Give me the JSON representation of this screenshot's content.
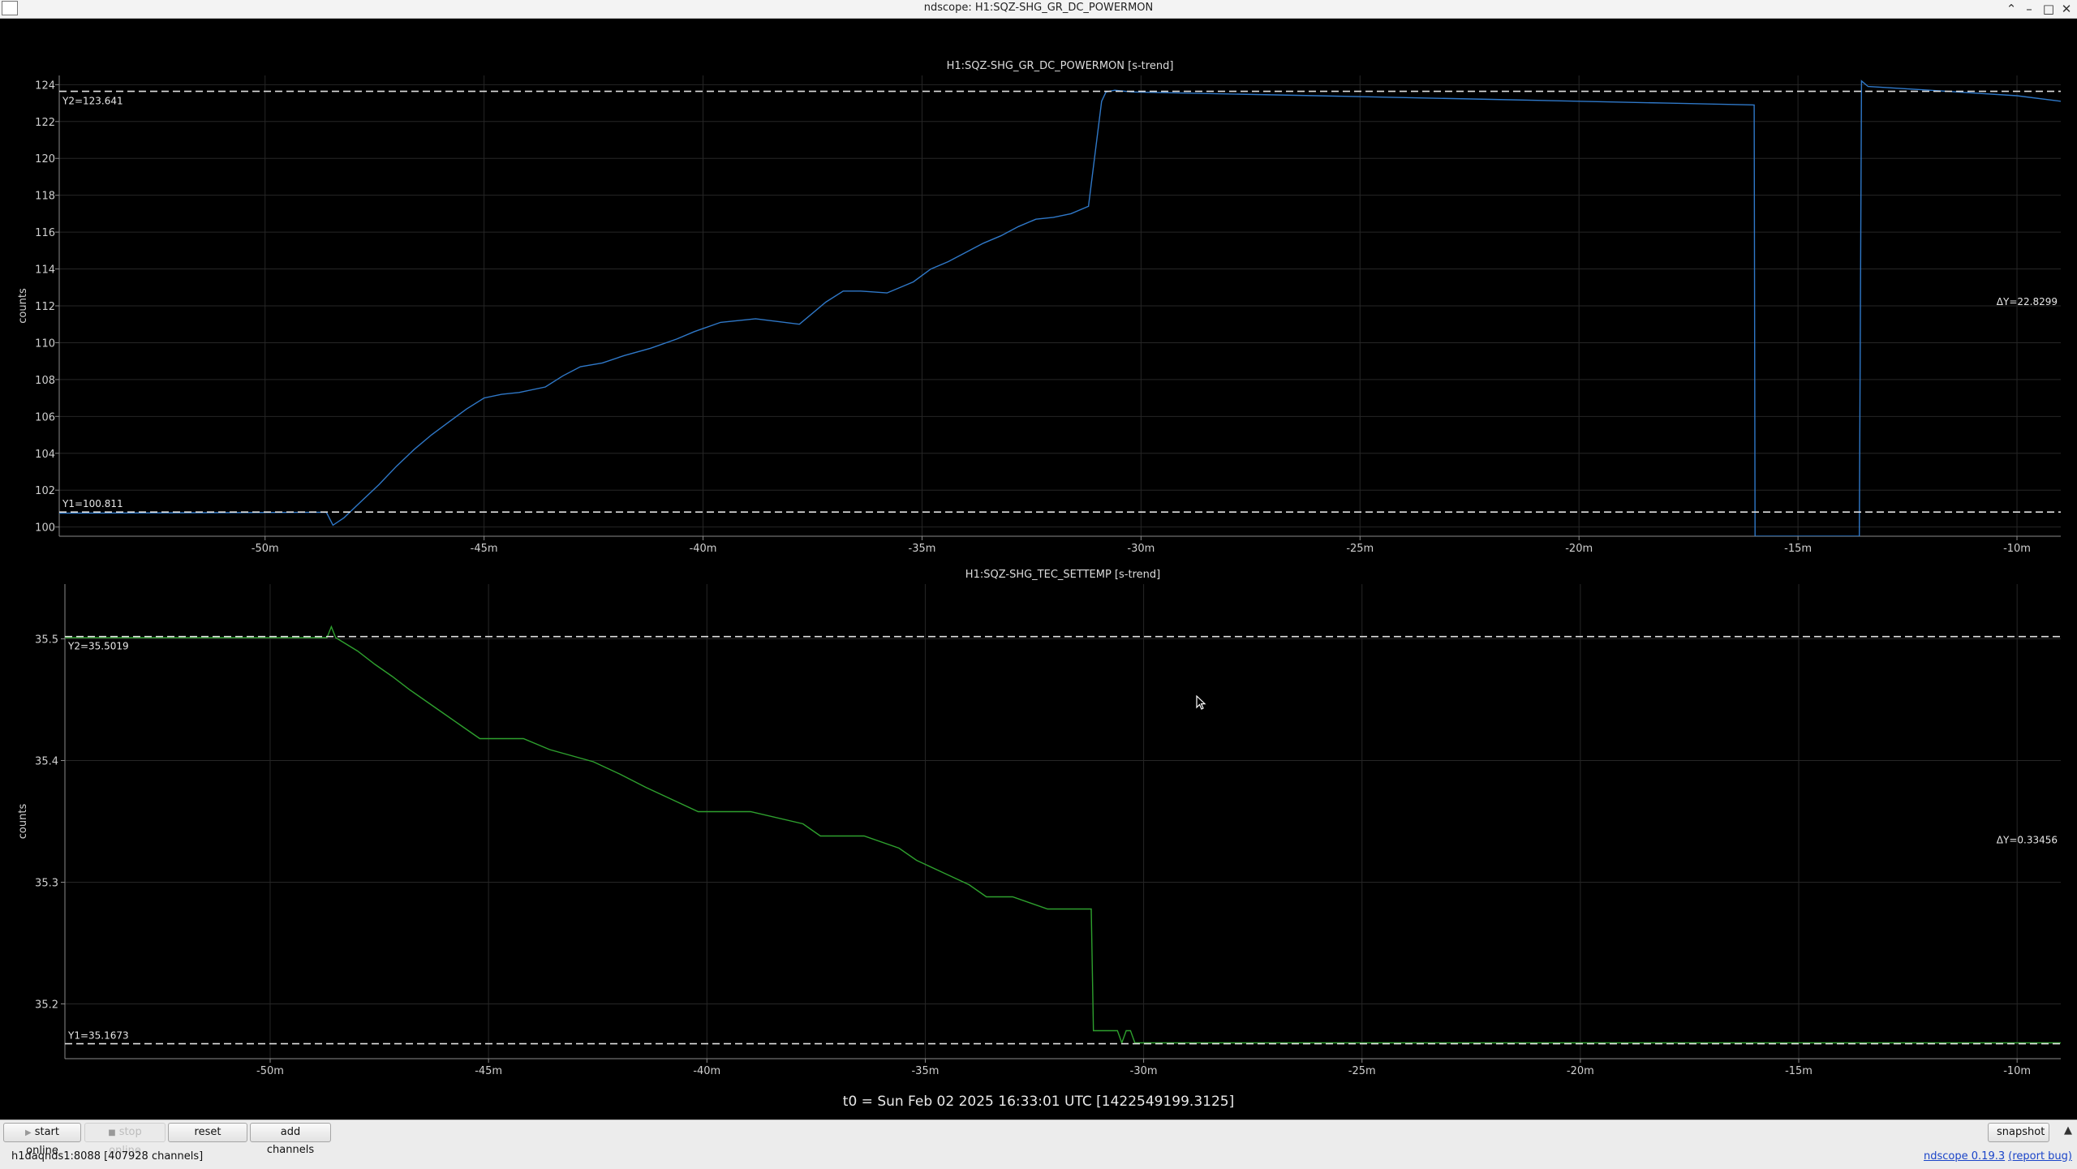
{
  "window": {
    "title": "ndscope: H1:SQZ-SHG_GR_DC_POWERMON"
  },
  "window_controls": {
    "shade": "⌃",
    "minimize": "–",
    "maximize": "□",
    "close": "✕"
  },
  "colors": {
    "background": "#000000",
    "trace1": "#2f78c8",
    "trace2": "#2ea02e",
    "cursor_line": "#e0e0e0",
    "grid": "#2a2a2a"
  },
  "chart_data": [
    {
      "type": "line",
      "title": "H1:SQZ-SHG_GR_DC_POWERMON [s-trend]",
      "ylabel": "counts",
      "xlabel": "",
      "xlim": [
        -54.7,
        -9.0
      ],
      "ylim": [
        99.5,
        124.5
      ],
      "yticks": [
        "100",
        "102",
        "104",
        "106",
        "108",
        "110",
        "112",
        "114",
        "116",
        "118",
        "120",
        "122",
        "124"
      ],
      "xticks": [
        "-50m",
        "-45m",
        "-40m",
        "-35m",
        "-30m",
        "-25m",
        "-20m",
        "-15m",
        "-10m"
      ],
      "grid": true,
      "cursors": {
        "y1": 100.811,
        "y2": 123.641,
        "y1_label": "Y1=100.811",
        "y2_label": "Y2=123.641",
        "delta_label": "ΔY=22.8299"
      },
      "series": [
        {
          "color": "#2f78c8",
          "x": [
            -54.7,
            -48.6,
            -48.45,
            -48.2,
            -47.8,
            -47.4,
            -47.0,
            -46.6,
            -46.2,
            -45.8,
            -45.4,
            -45.0,
            -44.6,
            -44.2,
            -43.6,
            -43.2,
            -42.8,
            -42.3,
            -41.8,
            -41.2,
            -40.6,
            -40.2,
            -39.6,
            -39.2,
            -38.8,
            -37.8,
            -37.2,
            -36.8,
            -36.4,
            -35.8,
            -35.2,
            -34.8,
            -34.4,
            -34.0,
            -33.6,
            -33.2,
            -32.8,
            -32.4,
            -32.0,
            -31.6,
            -31.2,
            -30.9,
            -30.8,
            -30.6,
            -30.2,
            -26.0,
            -22.0,
            -18.0,
            -16.0,
            -15.98,
            -13.6,
            -13.55,
            -13.4,
            -12.0,
            -10.0,
            -9.0
          ],
          "y": [
            100.75,
            100.8,
            100.1,
            100.5,
            101.4,
            102.3,
            103.3,
            104.2,
            105.0,
            105.7,
            106.4,
            107.0,
            107.2,
            107.3,
            107.6,
            108.2,
            108.7,
            108.9,
            109.3,
            109.7,
            110.2,
            110.6,
            111.1,
            111.2,
            111.3,
            111.0,
            112.2,
            112.8,
            112.8,
            112.7,
            113.3,
            114.0,
            114.4,
            114.9,
            115.4,
            115.8,
            116.3,
            116.7,
            116.8,
            117.0,
            117.4,
            123.1,
            123.6,
            123.7,
            123.6,
            123.4,
            123.2,
            123.0,
            122.9,
            99.5,
            99.5,
            124.2,
            123.9,
            123.7,
            123.4,
            123.1
          ]
        }
      ]
    },
    {
      "type": "line",
      "title": "H1:SQZ-SHG_TEC_SETTEMP [s-trend]",
      "ylabel": "counts",
      "xlabel": "",
      "xlim": [
        -54.7,
        -9.0
      ],
      "ylim": [
        35.155,
        35.545
      ],
      "yticks": [
        "35.2",
        "35.3",
        "35.4",
        "35.5"
      ],
      "xticks": [
        "-50m",
        "-45m",
        "-40m",
        "-35m",
        "-30m",
        "-25m",
        "-20m",
        "-15m",
        "-10m"
      ],
      "grid": true,
      "cursors": {
        "y1": 35.1673,
        "y2": 35.5019,
        "y1_label": "Y1=35.1673",
        "y2_label": "Y2=35.5019",
        "delta_label": "ΔY=0.33456"
      },
      "series": [
        {
          "color": "#2ea02e",
          "x": [
            -54.7,
            -48.7,
            -48.6,
            -48.5,
            -48.0,
            -47.6,
            -47.2,
            -46.8,
            -46.4,
            -46.0,
            -45.6,
            -45.2,
            -44.2,
            -43.6,
            -42.6,
            -42.0,
            -41.4,
            -40.8,
            -40.2,
            -39.0,
            -37.8,
            -37.4,
            -36.4,
            -35.6,
            -35.2,
            -34.6,
            -34.0,
            -33.6,
            -33.0,
            -32.2,
            -31.2,
            -31.15,
            -30.6,
            -30.5,
            -30.4,
            -30.3,
            -30.2,
            -9.0
          ],
          "y": [
            35.501,
            35.501,
            35.51,
            35.501,
            35.49,
            35.479,
            35.469,
            35.458,
            35.448,
            35.438,
            35.428,
            35.418,
            35.418,
            35.409,
            35.399,
            35.389,
            35.378,
            35.368,
            35.358,
            35.358,
            35.348,
            35.338,
            35.338,
            35.328,
            35.318,
            35.308,
            35.298,
            35.288,
            35.288,
            35.278,
            35.278,
            35.178,
            35.178,
            35.168,
            35.178,
            35.178,
            35.168,
            35.168
          ]
        }
      ]
    }
  ],
  "plot_footer": {
    "t0": "t0 = Sun Feb 02 2025 16:33:01 UTC [1422549199.3125]"
  },
  "toolbar": {
    "start_online": "start online",
    "stop_online": "stop online",
    "reset": "reset",
    "add_channels": "add channels",
    "snapshot": "snapshot",
    "expand_icon": "▲"
  },
  "statusbar": {
    "server": "h1daqnds1:8088  [407928 channels]",
    "version": "ndscope 0.19.3",
    "report_bug": "(report bug)"
  }
}
